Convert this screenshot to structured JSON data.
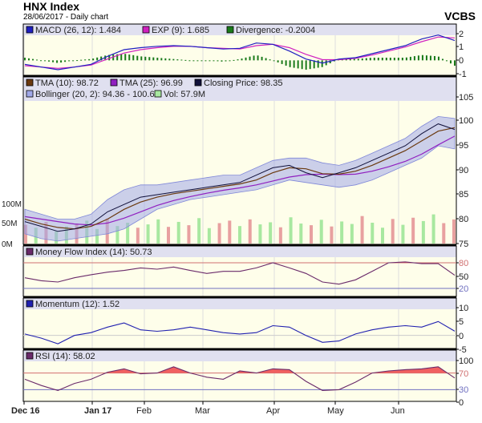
{
  "header": {
    "title": "HNX Index",
    "subtitle": "28/06/2017 - Daily chart",
    "brand": "VCBS"
  },
  "colors": {
    "macd": "#1f1fc0",
    "exp": "#d020c0",
    "divergence": "#1a7a1a",
    "tma10": "#6b3a10",
    "tma25": "#9020c0",
    "close": "#10103a",
    "bollinger": "#a0a8e8",
    "vol_up": "#a8e8a0",
    "vol_down": "#e8a0a0",
    "mfi": "#6a2a6a",
    "momentum": "#2020b0",
    "rsi": "#6a2a6a",
    "overbought_fill": "#f06060",
    "panel_bg": "#fefeea",
    "legend_bg": "#e0e0f0"
  },
  "chart_data": [
    {
      "type": "line",
      "name": "macd",
      "legend": [
        {
          "label": "MACD (26, 12): 1.484"
        },
        {
          "label": "EXP (9): 1.685"
        },
        {
          "label": "Divergence: -0.2004"
        }
      ],
      "yticks": [
        "2",
        "1",
        "0",
        "-1"
      ],
      "ylim": [
        -1,
        2.2
      ],
      "macd": [
        -0.3,
        -0.5,
        -0.7,
        -0.5,
        -0.3,
        0.3,
        0.8,
        0.95,
        1.05,
        1.1,
        1.05,
        0.95,
        0.85,
        0.9,
        1.3,
        1.2,
        0.7,
        0.1,
        -0.2,
        0.1,
        0.2,
        0.5,
        0.8,
        1.1,
        1.6,
        1.9,
        1.484
      ],
      "exp": [
        -0.4,
        -0.5,
        -0.6,
        -0.5,
        -0.35,
        0.1,
        0.55,
        0.8,
        0.95,
        1.05,
        1.05,
        0.95,
        0.9,
        0.85,
        1.1,
        1.2,
        0.95,
        0.45,
        0.05,
        0.05,
        0.15,
        0.4,
        0.7,
        1.0,
        1.4,
        1.75,
        1.685
      ]
    },
    {
      "type": "line",
      "name": "price",
      "legend": [
        {
          "label": "TMA (10): 98.72"
        },
        {
          "label": "TMA (25): 96.99"
        },
        {
          "label": "Closing Price: 98.35"
        },
        {
          "label": "Bollinger (20, 2): 94.36 - 100.6"
        },
        {
          "label": "Vol: 57.9M"
        }
      ],
      "yticks": [
        "105",
        "100",
        "95",
        "90",
        "85",
        "80",
        "75"
      ],
      "ylim": [
        75,
        105
      ],
      "vol_ticks": [
        "100M",
        "50M",
        "0M"
      ],
      "close": [
        79.5,
        78.5,
        77.5,
        78,
        79,
        81.5,
        83,
        84.5,
        85,
        85.5,
        86,
        86.5,
        87,
        87.5,
        89,
        90.5,
        91,
        89.5,
        88.5,
        89.5,
        90.5,
        92,
        93.5,
        95,
        97.5,
        99.5,
        98.35
      ],
      "tma10": [
        80,
        79,
        78.3,
        78,
        78.5,
        80,
        82,
        83.5,
        84.5,
        85.2,
        85.7,
        86.2,
        86.7,
        87.2,
        88,
        89.5,
        90.5,
        90.3,
        89.3,
        89.2,
        89.8,
        91,
        92.5,
        94,
        96,
        98,
        98.72
      ],
      "tma25": [
        80.5,
        80,
        79.5,
        79,
        78.8,
        79.2,
        80.2,
        81.5,
        82.8,
        83.8,
        84.6,
        85.3,
        85.9,
        86.4,
        87,
        87.8,
        88.6,
        89.1,
        89.2,
        89.1,
        89.2,
        89.8,
        90.7,
        91.8,
        93.3,
        95.2,
        96.99
      ],
      "boll_upper": [
        82,
        81,
        80,
        80,
        81,
        84,
        86,
        87,
        87,
        87.5,
        88,
        88.5,
        89,
        89,
        90.5,
        92,
        92.5,
        92.5,
        91.5,
        91,
        92,
        93.5,
        95,
        96.5,
        99,
        101,
        100.6
      ],
      "boll_lower": [
        77,
        76,
        75.5,
        76,
        76.5,
        77,
        78,
        80,
        82,
        83,
        84,
        84.5,
        85,
        85.5,
        86,
        87,
        88,
        87.5,
        87,
        86.5,
        87,
        88,
        89.5,
        91,
        92.5,
        95,
        94.36
      ],
      "volume_m": [
        45,
        38,
        52,
        30,
        41,
        48,
        55,
        35,
        60,
        42,
        50,
        38,
        46,
        58,
        40,
        52,
        44,
        61,
        37,
        49,
        55,
        42,
        58,
        46,
        51,
        39,
        63,
        48,
        44,
        57,
        41,
        53,
        47,
        66,
        50,
        38,
        59,
        45,
        62,
        54,
        70,
        49,
        57.9
      ],
      "volume_up": [
        0,
        1,
        0,
        1,
        1,
        0,
        1,
        1,
        0,
        1,
        1,
        0,
        1,
        1,
        0,
        1,
        0,
        1,
        1,
        0,
        0,
        1,
        0,
        1,
        1,
        0,
        1,
        1,
        0,
        1,
        0,
        1,
        1,
        0,
        1,
        1,
        0,
        1,
        0,
        1,
        1,
        0,
        0
      ]
    },
    {
      "type": "line",
      "name": "mfi",
      "legend": [
        {
          "label": "Money Flow Index (14): 50.73"
        }
      ],
      "yticks": [
        "80",
        "50",
        "20"
      ],
      "ylim": [
        0,
        100
      ],
      "values": [
        45,
        38,
        35,
        45,
        52,
        58,
        62,
        68,
        65,
        70,
        62,
        55,
        60,
        60,
        68,
        80,
        68,
        55,
        35,
        30,
        40,
        60,
        80,
        82,
        78,
        78,
        50.73
      ]
    },
    {
      "type": "line",
      "name": "momentum",
      "legend": [
        {
          "label": "Momentum (12): 1.52"
        }
      ],
      "yticks": [
        "10",
        "5",
        "0",
        "-5"
      ],
      "ylim": [
        -5,
        12
      ],
      "values": [
        0.5,
        -1,
        -3,
        0,
        1,
        3,
        4.5,
        2,
        1.5,
        2,
        3,
        2,
        1,
        0.5,
        1,
        3.5,
        3,
        0,
        -2.5,
        -2,
        0.5,
        2,
        3,
        3.5,
        3,
        5,
        1.52
      ]
    },
    {
      "type": "line",
      "name": "rsi",
      "legend": [
        {
          "label": "RSI (14): 58.02"
        }
      ],
      "yticks": [
        "100",
        "70",
        "30",
        "0"
      ],
      "ylim": [
        0,
        110
      ],
      "values": [
        55,
        40,
        28,
        45,
        55,
        72,
        80,
        68,
        70,
        85,
        70,
        60,
        55,
        75,
        70,
        80,
        78,
        50,
        28,
        30,
        48,
        70,
        75,
        78,
        80,
        85,
        58.02
      ]
    }
  ],
  "x_labels": [
    "Dec 16",
    "Jan 17",
    "Feb",
    "Mar",
    "Apr",
    "May",
    "Jun"
  ]
}
